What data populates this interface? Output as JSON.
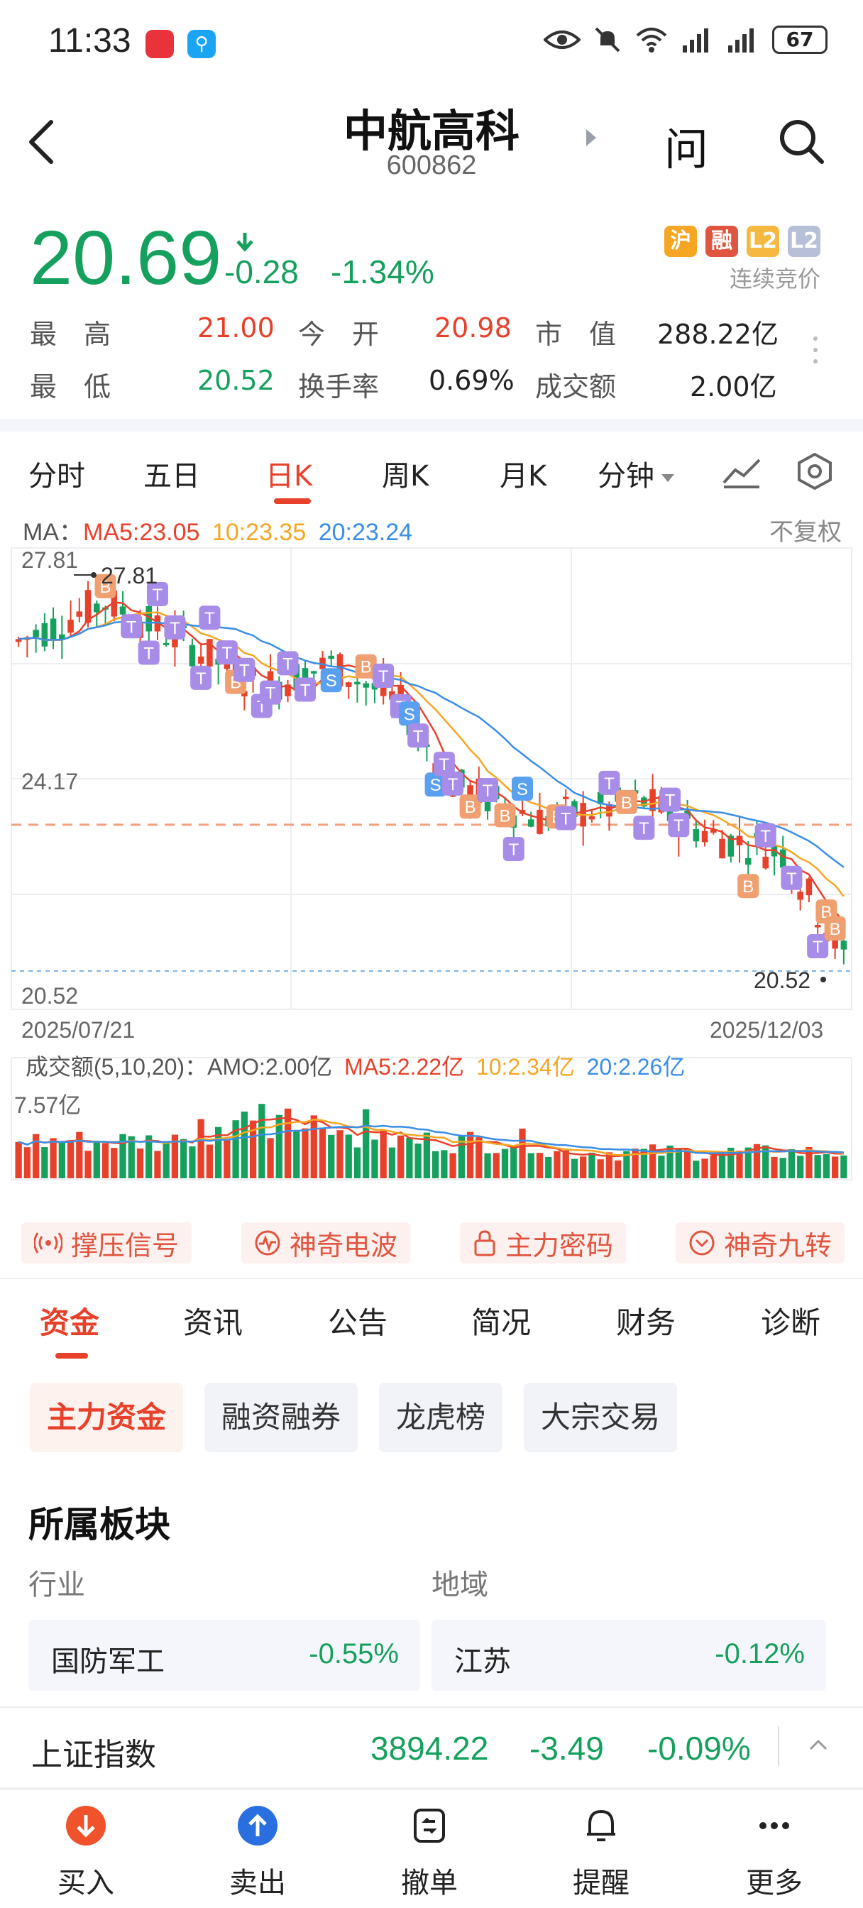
{
  "status_bar": {
    "time": "11:33",
    "battery": "67"
  },
  "header": {
    "stock_name": "中航高科",
    "stock_code": "600862",
    "ask_label": "问"
  },
  "quote": {
    "price": "20.69",
    "change": "-0.28",
    "change_pct": "-1.34%",
    "badges": [
      {
        "label": "沪",
        "color": "#f5a623"
      },
      {
        "label": "融",
        "color": "#e0553f"
      },
      {
        "label": "L2",
        "color": "#f5b840"
      },
      {
        "label": "L2",
        "color": "#b8c0d8"
      }
    ],
    "auction_status": "连续竞价",
    "stats": {
      "high_label": "最　高",
      "high": "21.00",
      "open_label": "今　开",
      "open": "20.98",
      "mktcap_label": "市　值",
      "mktcap": "288.22亿",
      "low_label": "最　低",
      "low": "20.52",
      "turnover_label": "换手率",
      "turnover": "0.69%",
      "amount_label": "成交额",
      "amount": "2.00亿"
    }
  },
  "kline_tabs": [
    "分时",
    "五日",
    "日K",
    "周K",
    "月K",
    "分钟"
  ],
  "kline_active": "日K",
  "ma": {
    "prefix": "MA：",
    "ma5": "MA5:23.05",
    "ma10": "10:23.35",
    "ma20": "20:23.24",
    "fuquan": "不复权"
  },
  "chart_data": {
    "type": "candlestick",
    "y_labels": [
      "27.81",
      "24.17",
      "20.52"
    ],
    "high_marker": "27.81",
    "low_marker": "20.52",
    "x_start": "2025/07/21",
    "x_end": "2025/12/03",
    "reference_price": 23.1,
    "ylim": [
      20.52,
      27.81
    ],
    "colors": {
      "up": "#e8412b",
      "down": "#16a05d",
      "ma5": "#e8412b",
      "ma10": "#f5a623",
      "ma20": "#3a8ee6"
    }
  },
  "volume": {
    "prefix": "成交额(5,10,20)：",
    "amo": "AMO:2.00亿",
    "ma5": "MA5:2.22亿",
    "ma10": "10:2.34亿",
    "ma20": "20:2.26亿",
    "max_label": "7.57亿"
  },
  "signals": [
    "撑压信号",
    "神奇电波",
    "主力密码",
    "神奇九转"
  ],
  "info_tabs": [
    "资金",
    "资讯",
    "公告",
    "简况",
    "财务",
    "诊断"
  ],
  "sub_tabs": [
    "主力资金",
    "融资融券",
    "龙虎榜",
    "大宗交易"
  ],
  "sector": {
    "title": "所属板块",
    "industry_label": "行业",
    "region_label": "地域",
    "industry_name": "国防军工",
    "industry_pct": "-0.55%",
    "region_name": "江苏",
    "region_pct": "-0.12%"
  },
  "index": {
    "name": "上证指数",
    "value": "3894.22",
    "change": "-3.49",
    "pct": "-0.09%"
  },
  "bottom_nav": [
    "买入",
    "卖出",
    "撤单",
    "提醒",
    "更多"
  ]
}
